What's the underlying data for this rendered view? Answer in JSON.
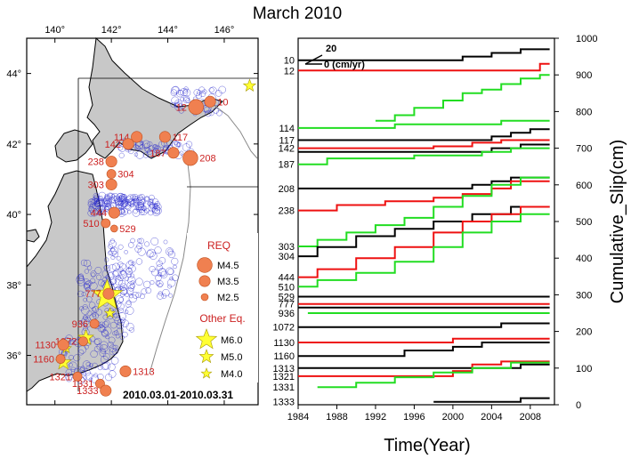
{
  "title": "March 2010",
  "map": {
    "lon_ticks": [
      "140°",
      "142°",
      "144°",
      "146°"
    ],
    "lat_ticks": [
      "44°",
      "42°",
      "40°",
      "38°",
      "36°"
    ],
    "date_range": "2010.03.01-2010.03.31",
    "legend": {
      "req_title": "REQ",
      "req_items": [
        "M4.5",
        "M3.5",
        "M2.5"
      ],
      "other_title": "Other Eq.",
      "other_items": [
        "M6.0",
        "M5.0",
        "M4.0"
      ]
    },
    "colors": {
      "land": "#c8c8c8",
      "req": "#f08050",
      "other": "#ffff33",
      "ring": "#2222cc",
      "label": "#cc2222"
    },
    "req_sites": [
      {
        "label": "12",
        "lon": 145.0,
        "lat": 43.05,
        "mag": 4.5
      },
      {
        "label": "10",
        "lon": 145.5,
        "lat": 43.2,
        "mag": 3.5
      },
      {
        "label": "114",
        "lon": 142.9,
        "lat": 42.2,
        "mag": 3.5
      },
      {
        "label": "142",
        "lon": 142.6,
        "lat": 42.0,
        "mag": 3.5
      },
      {
        "label": "117",
        "lon": 143.9,
        "lat": 42.2,
        "mag": 3.5
      },
      {
        "label": "187",
        "lon": 144.2,
        "lat": 41.75,
        "mag": 3.5
      },
      {
        "label": "208",
        "lon": 144.8,
        "lat": 41.6,
        "mag": 4.5
      },
      {
        "label": "238",
        "lon": 142.0,
        "lat": 41.5,
        "mag": 3.5
      },
      {
        "label": "304",
        "lon": 142.0,
        "lat": 41.15,
        "mag": 3.0
      },
      {
        "label": "303",
        "lon": 142.0,
        "lat": 40.85,
        "mag": 3.5
      },
      {
        "label": "444",
        "lon": 142.1,
        "lat": 40.05,
        "mag": 3.5
      },
      {
        "label": "510",
        "lon": 141.8,
        "lat": 39.75,
        "mag": 3.0
      },
      {
        "label": "529",
        "lon": 142.1,
        "lat": 39.6,
        "mag": 2.5
      },
      {
        "label": "777",
        "lon": 141.9,
        "lat": 37.75,
        "mag": 3.5
      },
      {
        "label": "936",
        "lon": 141.4,
        "lat": 36.9,
        "mag": 3.0
      },
      {
        "label": "1072",
        "lon": 141.0,
        "lat": 36.4,
        "mag": 3.0
      },
      {
        "label": "1130",
        "lon": 140.3,
        "lat": 36.3,
        "mag": 3.5
      },
      {
        "label": "1160",
        "lon": 140.2,
        "lat": 35.9,
        "mag": 3.0
      },
      {
        "label": "1321",
        "lon": 140.8,
        "lat": 35.4,
        "mag": 3.0
      },
      {
        "label": "1313",
        "lon": 142.5,
        "lat": 35.55,
        "mag": 3.5
      },
      {
        "label": "1331",
        "lon": 141.6,
        "lat": 35.2,
        "mag": 3.0
      },
      {
        "label": "1333",
        "lon": 141.8,
        "lat": 35.0,
        "mag": 3.5
      }
    ],
    "other_eq": [
      {
        "lon": 146.9,
        "lat": 43.65,
        "mag": 4.2
      },
      {
        "lon": 141.85,
        "lat": 37.7,
        "mag": 6.0
      },
      {
        "lon": 141.1,
        "lat": 36.5,
        "mag": 4.5
      },
      {
        "lon": 140.3,
        "lat": 35.8,
        "mag": 4.5
      },
      {
        "lon": 141.95,
        "lat": 37.2,
        "mag": 4.0
      },
      {
        "lon": 140.4,
        "lat": 36.2,
        "mag": 4.0
      }
    ]
  },
  "chart_data": {
    "type": "line",
    "xlabel": "Time(Year)",
    "ylabel": "Cumulative_Slip(cm)",
    "xlim": [
      1984,
      2010.5
    ],
    "ylim": [
      0,
      1000
    ],
    "x_ticks": [
      1984,
      1988,
      1992,
      1996,
      2000,
      2004,
      2008
    ],
    "y_ticks": [
      0,
      100,
      200,
      300,
      400,
      500,
      600,
      700,
      800,
      900,
      1000
    ],
    "scale_labels": [
      "20",
      "0 (cm/yr)"
    ],
    "series_colors": [
      "#000000",
      "#ee1111",
      "#22dd22"
    ],
    "series": [
      {
        "label": "10",
        "color": "#000000",
        "base": 940,
        "points": [
          [
            1984,
            940
          ],
          [
            2001,
            940
          ],
          [
            2001,
            950
          ],
          [
            2004,
            950
          ],
          [
            2004,
            960
          ],
          [
            2007,
            960
          ],
          [
            2007,
            970
          ],
          [
            2010,
            970
          ]
        ]
      },
      {
        "label": "12",
        "color": "#ee1111",
        "base": 912,
        "points": [
          [
            1984,
            912
          ],
          [
            2009,
            912
          ],
          [
            2009,
            930
          ],
          [
            2010,
            930
          ]
        ]
      },
      {
        "label": "",
        "color": "#22dd22",
        "base": 775,
        "points": [
          [
            1992,
            775
          ],
          [
            1994,
            775
          ],
          [
            1994,
            790
          ],
          [
            1996,
            790
          ],
          [
            1996,
            810
          ],
          [
            1999,
            810
          ],
          [
            1999,
            830
          ],
          [
            2001,
            830
          ],
          [
            2001,
            850
          ],
          [
            2003,
            850
          ],
          [
            2003,
            860
          ],
          [
            2005,
            860
          ],
          [
            2005,
            875
          ],
          [
            2007,
            875
          ],
          [
            2007,
            890
          ],
          [
            2009,
            890
          ],
          [
            2009,
            900
          ],
          [
            2010,
            900
          ]
        ]
      },
      {
        "label": "114",
        "color": "#22dd22",
        "base": 755,
        "points": [
          [
            1984,
            755
          ],
          [
            1994,
            755
          ],
          [
            1994,
            765
          ],
          [
            2005,
            765
          ],
          [
            2005,
            775
          ],
          [
            2010,
            775
          ]
        ]
      },
      {
        "label": "117",
        "color": "#000000",
        "base": 722,
        "points": [
          [
            1984,
            722
          ],
          [
            2004,
            722
          ],
          [
            2004,
            732
          ],
          [
            2006,
            732
          ],
          [
            2006,
            742
          ],
          [
            2008,
            742
          ],
          [
            2008,
            752
          ],
          [
            2010,
            752
          ]
        ]
      },
      {
        "label": "142",
        "color": "#ee1111",
        "base": 700,
        "points": [
          [
            1984,
            700
          ],
          [
            1998,
            700
          ],
          [
            1998,
            705
          ],
          [
            2002,
            705
          ],
          [
            2002,
            715
          ],
          [
            2005,
            715
          ],
          [
            2005,
            722
          ],
          [
            2010,
            722
          ]
        ]
      },
      {
        "label": "",
        "color": "#000000",
        "base": 690,
        "points": [
          [
            1984,
            690
          ],
          [
            2004,
            690
          ],
          [
            2004,
            700
          ],
          [
            2007,
            700
          ],
          [
            2007,
            710
          ],
          [
            2010,
            710
          ]
        ]
      },
      {
        "label": "187",
        "color": "#22dd22",
        "base": 656,
        "points": [
          [
            1984,
            656
          ],
          [
            1987,
            656
          ],
          [
            1987,
            672
          ],
          [
            1996,
            672
          ],
          [
            1996,
            680
          ],
          [
            2003,
            680
          ],
          [
            2003,
            690
          ],
          [
            2006,
            690
          ],
          [
            2006,
            700
          ],
          [
            2010,
            700
          ]
        ]
      },
      {
        "label": "208",
        "color": "#000000",
        "base": 590,
        "points": [
          [
            1984,
            590
          ],
          [
            2002,
            590
          ],
          [
            2002,
            600
          ],
          [
            2004,
            600
          ],
          [
            2004,
            610
          ],
          [
            2006,
            610
          ],
          [
            2006,
            620
          ],
          [
            2010,
            620
          ]
        ]
      },
      {
        "label": "238",
        "color": "#ee1111",
        "base": 530,
        "points": [
          [
            1984,
            530
          ],
          [
            1988,
            530
          ],
          [
            1988,
            545
          ],
          [
            1993,
            545
          ],
          [
            1993,
            555
          ],
          [
            1998,
            555
          ],
          [
            1998,
            565
          ],
          [
            2001,
            565
          ],
          [
            2001,
            575
          ],
          [
            2004,
            575
          ],
          [
            2004,
            590
          ],
          [
            2006,
            590
          ],
          [
            2006,
            610
          ],
          [
            2010,
            610
          ]
        ]
      },
      {
        "label": "303",
        "color": "#22dd22",
        "base": 432,
        "points": [
          [
            1984,
            432
          ],
          [
            1986,
            432
          ],
          [
            1986,
            450
          ],
          [
            1989,
            450
          ],
          [
            1989,
            470
          ],
          [
            1992,
            470
          ],
          [
            1992,
            490
          ],
          [
            1995,
            490
          ],
          [
            1995,
            510
          ],
          [
            1998,
            510
          ],
          [
            1998,
            540
          ],
          [
            2001,
            540
          ],
          [
            2001,
            570
          ],
          [
            2004,
            570
          ],
          [
            2004,
            600
          ],
          [
            2007,
            600
          ],
          [
            2007,
            620
          ],
          [
            2010,
            620
          ]
        ]
      },
      {
        "label": "304",
        "color": "#000000",
        "base": 405,
        "points": [
          [
            1984,
            405
          ],
          [
            1986,
            405
          ],
          [
            1986,
            430
          ],
          [
            1990,
            430
          ],
          [
            1990,
            460
          ],
          [
            1994,
            460
          ],
          [
            1994,
            480
          ],
          [
            1998,
            480
          ],
          [
            1998,
            500
          ],
          [
            2002,
            500
          ],
          [
            2002,
            520
          ],
          [
            2006,
            520
          ],
          [
            2006,
            540
          ],
          [
            2010,
            540
          ]
        ]
      },
      {
        "label": "444",
        "color": "#ee1111",
        "base": 348,
        "points": [
          [
            1984,
            348
          ],
          [
            1986,
            348
          ],
          [
            1986,
            370
          ],
          [
            1990,
            370
          ],
          [
            1990,
            400
          ],
          [
            1994,
            400
          ],
          [
            1994,
            430
          ],
          [
            1998,
            430
          ],
          [
            1998,
            470
          ],
          [
            2001,
            470
          ],
          [
            2001,
            500
          ],
          [
            2004,
            500
          ],
          [
            2004,
            520
          ],
          [
            2007,
            520
          ],
          [
            2007,
            540
          ],
          [
            2010,
            540
          ]
        ]
      },
      {
        "label": "510",
        "color": "#22dd22",
        "base": 322,
        "points": [
          [
            1984,
            322
          ],
          [
            1986,
            322
          ],
          [
            1986,
            340
          ],
          [
            1990,
            340
          ],
          [
            1990,
            360
          ],
          [
            1994,
            360
          ],
          [
            1994,
            390
          ],
          [
            1998,
            390
          ],
          [
            1998,
            430
          ],
          [
            2001,
            430
          ],
          [
            2001,
            470
          ],
          [
            2004,
            470
          ],
          [
            2004,
            500
          ],
          [
            2007,
            500
          ],
          [
            2007,
            520
          ],
          [
            2010,
            520
          ]
        ]
      },
      {
        "label": "529",
        "color": "#000000",
        "base": 295,
        "points": [
          [
            1984,
            295
          ],
          [
            2010,
            295
          ]
        ]
      },
      {
        "label": "777",
        "color": "#ee1111",
        "base": 275,
        "points": [
          [
            1984,
            275
          ],
          [
            2010,
            275
          ]
        ]
      },
      {
        "label": "",
        "color": "#000000",
        "base": 265,
        "points": [
          [
            1984,
            265
          ],
          [
            2010,
            265
          ]
        ]
      },
      {
        "label": "936",
        "color": "#22dd22",
        "base": 250,
        "points": [
          [
            1985,
            250
          ],
          [
            2010,
            250
          ]
        ]
      },
      {
        "label": "1072",
        "color": "#000000",
        "base": 212,
        "points": [
          [
            1984,
            212
          ],
          [
            2005,
            212
          ],
          [
            2005,
            222
          ],
          [
            2010,
            222
          ]
        ]
      },
      {
        "label": "1130",
        "color": "#ee1111",
        "base": 170,
        "points": [
          [
            1984,
            170
          ],
          [
            2000,
            170
          ],
          [
            2000,
            180
          ],
          [
            2010,
            180
          ]
        ]
      },
      {
        "label": "1160",
        "color": "#000000",
        "base": 133,
        "points": [
          [
            1984,
            133
          ],
          [
            1995,
            133
          ],
          [
            1995,
            148
          ],
          [
            2000,
            148
          ],
          [
            2000,
            158
          ],
          [
            2003,
            158
          ],
          [
            2003,
            170
          ],
          [
            2010,
            170
          ]
        ]
      },
      {
        "label": "1313",
        "color": "#000000",
        "base": 100,
        "points": [
          [
            1984,
            100
          ],
          [
            2007,
            100
          ],
          [
            2007,
            110
          ],
          [
            2010,
            110
          ]
        ]
      },
      {
        "label": "1321",
        "color": "#ee1111",
        "base": 78,
        "points": [
          [
            1984,
            78
          ],
          [
            2000,
            78
          ],
          [
            2000,
            92
          ],
          [
            2002,
            92
          ],
          [
            2002,
            110
          ],
          [
            2005,
            110
          ],
          [
            2005,
            118
          ],
          [
            2010,
            118
          ]
        ]
      },
      {
        "label": "1331",
        "color": "#22dd22",
        "base": 48,
        "points": [
          [
            1986,
            48
          ],
          [
            1990,
            48
          ],
          [
            1990,
            60
          ],
          [
            1994,
            60
          ],
          [
            1994,
            75
          ],
          [
            1998,
            75
          ],
          [
            1998,
            88
          ],
          [
            2002,
            88
          ],
          [
            2002,
            100
          ],
          [
            2006,
            100
          ],
          [
            2006,
            115
          ],
          [
            2010,
            115
          ]
        ]
      },
      {
        "label": "1333",
        "color": "#000000",
        "base": 8,
        "points": [
          [
            1998,
            8
          ],
          [
            2007,
            8
          ],
          [
            2007,
            18
          ],
          [
            2010,
            18
          ]
        ]
      }
    ]
  }
}
